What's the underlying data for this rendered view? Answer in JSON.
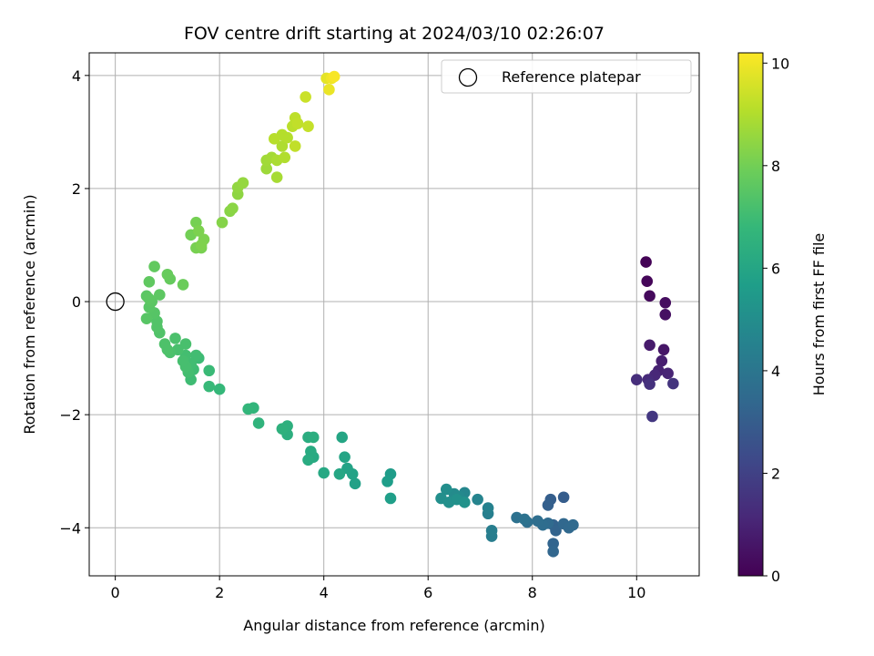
{
  "chart_data": {
    "type": "scatter",
    "title": "FOV centre drift starting at 2024/03/10 02:26:07",
    "xlabel": "Angular distance from reference (arcmin)",
    "ylabel": "Rotation from reference (arcmin)",
    "xlim": [
      -0.5,
      11.2
    ],
    "ylim": [
      -4.85,
      4.4
    ],
    "x_ticks": [
      0,
      2,
      4,
      6,
      8,
      10
    ],
    "y_ticks": [
      -4,
      -2,
      0,
      2,
      4
    ],
    "x_tick_labels": [
      "0",
      "2",
      "4",
      "6",
      "8",
      "10"
    ],
    "y_tick_labels": [
      "−4",
      "−2",
      "0",
      "2",
      "4"
    ],
    "grid": true,
    "legend_position": "top-right",
    "legend_label": "Reference platepar",
    "reference_point": {
      "x": 0,
      "y": 0
    },
    "colorbar": {
      "label": "Hours from first FF file",
      "colormap": "viridis",
      "range": [
        0,
        10.2
      ],
      "ticks": [
        0,
        2,
        4,
        6,
        8,
        10
      ],
      "tick_labels": [
        "0",
        "2",
        "4",
        "6",
        "8",
        "10"
      ]
    },
    "colormap_stops": [
      "#440154",
      "#482878",
      "#3e4989",
      "#31688e",
      "#26828e",
      "#1f9e89",
      "#35b779",
      "#6ece58",
      "#b5de2b",
      "#fde725"
    ],
    "points": [
      {
        "x": 10.18,
        "y": 0.7,
        "t": 0.05
      },
      {
        "x": 10.2,
        "y": 0.36,
        "t": 0.15
      },
      {
        "x": 10.25,
        "y": 0.1,
        "t": 0.25
      },
      {
        "x": 10.55,
        "y": -0.02,
        "t": 0.35
      },
      {
        "x": 10.55,
        "y": -0.23,
        "t": 0.45
      },
      {
        "x": 10.52,
        "y": -0.85,
        "t": 0.6
      },
      {
        "x": 10.25,
        "y": -0.77,
        "t": 0.75
      },
      {
        "x": 10.48,
        "y": -1.05,
        "t": 0.85
      },
      {
        "x": 10.42,
        "y": -1.22,
        "t": 0.95
      },
      {
        "x": 10.6,
        "y": -1.27,
        "t": 1.05
      },
      {
        "x": 10.35,
        "y": -1.3,
        "t": 1.15
      },
      {
        "x": 10.22,
        "y": -1.38,
        "t": 1.25
      },
      {
        "x": 10.0,
        "y": -1.38,
        "t": 1.35
      },
      {
        "x": 10.25,
        "y": -1.46,
        "t": 1.45
      },
      {
        "x": 10.7,
        "y": -1.45,
        "t": 1.55
      },
      {
        "x": 10.3,
        "y": -2.03,
        "t": 1.65
      },
      {
        "x": 8.6,
        "y": -3.46,
        "t": 3.0
      },
      {
        "x": 8.35,
        "y": -3.5,
        "t": 3.05
      },
      {
        "x": 8.3,
        "y": -3.6,
        "t": 3.1
      },
      {
        "x": 8.4,
        "y": -3.95,
        "t": 3.2
      },
      {
        "x": 8.45,
        "y": -4.05,
        "t": 3.25
      },
      {
        "x": 8.4,
        "y": -4.28,
        "t": 3.3
      },
      {
        "x": 8.4,
        "y": -4.42,
        "t": 3.35
      },
      {
        "x": 8.6,
        "y": -3.93,
        "t": 3.4
      },
      {
        "x": 8.7,
        "y": -4.0,
        "t": 3.45
      },
      {
        "x": 8.78,
        "y": -3.95,
        "t": 3.5
      },
      {
        "x": 8.3,
        "y": -3.92,
        "t": 3.55
      },
      {
        "x": 8.2,
        "y": -3.95,
        "t": 3.6
      },
      {
        "x": 8.1,
        "y": -3.88,
        "t": 3.65
      },
      {
        "x": 7.9,
        "y": -3.9,
        "t": 3.7
      },
      {
        "x": 7.7,
        "y": -3.82,
        "t": 3.8
      },
      {
        "x": 7.85,
        "y": -3.85,
        "t": 3.85
      },
      {
        "x": 7.22,
        "y": -4.15,
        "t": 4.3
      },
      {
        "x": 7.22,
        "y": -4.05,
        "t": 4.35
      },
      {
        "x": 7.15,
        "y": -3.75,
        "t": 4.4
      },
      {
        "x": 7.15,
        "y": -3.65,
        "t": 4.5
      },
      {
        "x": 6.95,
        "y": -3.5,
        "t": 4.6
      },
      {
        "x": 6.7,
        "y": -3.38,
        "t": 4.7
      },
      {
        "x": 6.6,
        "y": -3.45,
        "t": 4.8
      },
      {
        "x": 6.5,
        "y": -3.4,
        "t": 4.9
      },
      {
        "x": 6.35,
        "y": -3.32,
        "t": 5.0
      },
      {
        "x": 6.25,
        "y": -3.48,
        "t": 5.05
      },
      {
        "x": 6.4,
        "y": -3.55,
        "t": 5.1
      },
      {
        "x": 6.55,
        "y": -3.5,
        "t": 5.15
      },
      {
        "x": 6.7,
        "y": -3.55,
        "t": 5.2
      },
      {
        "x": 5.28,
        "y": -3.05,
        "t": 5.6
      },
      {
        "x": 5.22,
        "y": -3.18,
        "t": 5.65
      },
      {
        "x": 5.28,
        "y": -3.48,
        "t": 5.7
      },
      {
        "x": 4.6,
        "y": -3.22,
        "t": 5.8
      },
      {
        "x": 4.55,
        "y": -3.05,
        "t": 5.85
      },
      {
        "x": 4.45,
        "y": -2.95,
        "t": 5.9
      },
      {
        "x": 4.4,
        "y": -2.75,
        "t": 5.95
      },
      {
        "x": 4.35,
        "y": -2.4,
        "t": 6.0
      },
      {
        "x": 4.3,
        "y": -3.05,
        "t": 6.05
      },
      {
        "x": 4.0,
        "y": -3.03,
        "t": 6.1
      },
      {
        "x": 3.8,
        "y": -2.75,
        "t": 6.15
      },
      {
        "x": 3.75,
        "y": -2.65,
        "t": 6.2
      },
      {
        "x": 3.7,
        "y": -2.8,
        "t": 6.25
      },
      {
        "x": 3.7,
        "y": -2.4,
        "t": 6.3
      },
      {
        "x": 3.8,
        "y": -2.4,
        "t": 6.35
      },
      {
        "x": 3.3,
        "y": -2.35,
        "t": 6.4
      },
      {
        "x": 3.3,
        "y": -2.2,
        "t": 6.45
      },
      {
        "x": 3.2,
        "y": -2.25,
        "t": 6.5
      },
      {
        "x": 2.75,
        "y": -2.15,
        "t": 6.6
      },
      {
        "x": 2.65,
        "y": -1.88,
        "t": 6.65
      },
      {
        "x": 2.55,
        "y": -1.9,
        "t": 6.7
      },
      {
        "x": 2.0,
        "y": -1.55,
        "t": 6.8
      },
      {
        "x": 1.8,
        "y": -1.5,
        "t": 6.85
      },
      {
        "x": 1.8,
        "y": -1.22,
        "t": 6.9
      },
      {
        "x": 1.6,
        "y": -1.0,
        "t": 6.95
      },
      {
        "x": 1.5,
        "y": -1.2,
        "t": 7.0
      },
      {
        "x": 1.45,
        "y": -1.38,
        "t": 7.0
      },
      {
        "x": 1.55,
        "y": -0.95,
        "t": 7.05
      },
      {
        "x": 1.45,
        "y": -1.1,
        "t": 7.05
      },
      {
        "x": 1.4,
        "y": -1.25,
        "t": 7.1
      },
      {
        "x": 1.35,
        "y": -0.95,
        "t": 7.1
      },
      {
        "x": 1.35,
        "y": -1.15,
        "t": 7.15
      },
      {
        "x": 1.3,
        "y": -1.05,
        "t": 7.15
      },
      {
        "x": 1.35,
        "y": -0.75,
        "t": 7.2
      },
      {
        "x": 1.2,
        "y": -0.85,
        "t": 7.2
      },
      {
        "x": 1.15,
        "y": -0.65,
        "t": 7.25
      },
      {
        "x": 1.05,
        "y": -0.9,
        "t": 7.25
      },
      {
        "x": 1.0,
        "y": -0.85,
        "t": 7.3
      },
      {
        "x": 0.95,
        "y": -0.75,
        "t": 7.3
      },
      {
        "x": 0.85,
        "y": -0.55,
        "t": 7.35
      },
      {
        "x": 0.8,
        "y": -0.45,
        "t": 7.4
      },
      {
        "x": 0.8,
        "y": -0.35,
        "t": 7.4
      },
      {
        "x": 0.75,
        "y": -0.2,
        "t": 7.45
      },
      {
        "x": 0.6,
        "y": -0.3,
        "t": 7.5
      },
      {
        "x": 0.65,
        "y": -0.1,
        "t": 7.5
      },
      {
        "x": 0.7,
        "y": 0.0,
        "t": 7.55
      },
      {
        "x": 0.6,
        "y": 0.1,
        "t": 7.55
      },
      {
        "x": 0.65,
        "y": 0.05,
        "t": 7.6
      },
      {
        "x": 0.85,
        "y": 0.12,
        "t": 7.6
      },
      {
        "x": 0.65,
        "y": 0.35,
        "t": 7.65
      },
      {
        "x": 0.75,
        "y": 0.62,
        "t": 7.7
      },
      {
        "x": 1.05,
        "y": 0.4,
        "t": 7.75
      },
      {
        "x": 1.0,
        "y": 0.48,
        "t": 7.8
      },
      {
        "x": 1.3,
        "y": 0.3,
        "t": 7.85
      },
      {
        "x": 1.45,
        "y": 1.18,
        "t": 8.0
      },
      {
        "x": 1.55,
        "y": 1.4,
        "t": 8.05
      },
      {
        "x": 1.55,
        "y": 0.95,
        "t": 8.1
      },
      {
        "x": 1.65,
        "y": 0.95,
        "t": 8.1
      },
      {
        "x": 1.7,
        "y": 1.1,
        "t": 8.15
      },
      {
        "x": 1.6,
        "y": 1.25,
        "t": 8.15
      },
      {
        "x": 1.65,
        "y": 1.0,
        "t": 8.2
      },
      {
        "x": 2.05,
        "y": 1.4,
        "t": 8.3
      },
      {
        "x": 2.2,
        "y": 1.6,
        "t": 8.35
      },
      {
        "x": 2.25,
        "y": 1.65,
        "t": 8.4
      },
      {
        "x": 2.35,
        "y": 1.9,
        "t": 8.45
      },
      {
        "x": 2.35,
        "y": 2.02,
        "t": 8.5
      },
      {
        "x": 2.45,
        "y": 2.1,
        "t": 8.55
      },
      {
        "x": 2.9,
        "y": 2.35,
        "t": 8.7
      },
      {
        "x": 2.9,
        "y": 2.5,
        "t": 8.75
      },
      {
        "x": 3.0,
        "y": 2.55,
        "t": 8.8
      },
      {
        "x": 3.1,
        "y": 2.2,
        "t": 8.85
      },
      {
        "x": 3.1,
        "y": 2.5,
        "t": 8.9
      },
      {
        "x": 3.2,
        "y": 2.75,
        "t": 8.95
      },
      {
        "x": 3.25,
        "y": 2.55,
        "t": 9.0
      },
      {
        "x": 3.3,
        "y": 2.9,
        "t": 9.05
      },
      {
        "x": 3.2,
        "y": 2.95,
        "t": 9.05
      },
      {
        "x": 3.05,
        "y": 2.88,
        "t": 9.1
      },
      {
        "x": 3.4,
        "y": 3.1,
        "t": 9.15
      },
      {
        "x": 3.45,
        "y": 3.25,
        "t": 9.2
      },
      {
        "x": 3.5,
        "y": 3.15,
        "t": 9.25
      },
      {
        "x": 3.45,
        "y": 2.75,
        "t": 9.25
      },
      {
        "x": 3.7,
        "y": 3.1,
        "t": 9.3
      },
      {
        "x": 3.65,
        "y": 3.62,
        "t": 9.4
      },
      {
        "x": 4.05,
        "y": 3.95,
        "t": 9.8
      },
      {
        "x": 4.1,
        "y": 3.75,
        "t": 9.9
      },
      {
        "x": 4.15,
        "y": 3.95,
        "t": 10.0
      },
      {
        "x": 4.2,
        "y": 3.98,
        "t": 10.1
      }
    ]
  }
}
